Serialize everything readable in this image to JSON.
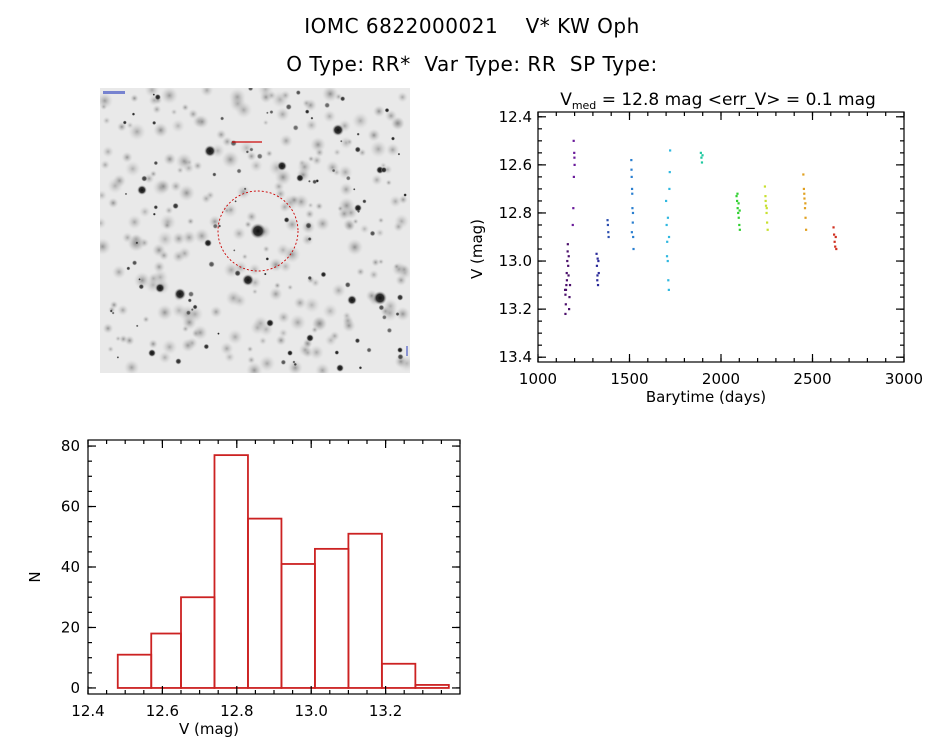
{
  "header": {
    "line1": "IOMC 6822000021    V* KW Oph",
    "line2": "O Type: RR*  Var Type: RR  SP Type:"
  },
  "finder": {
    "circle_color": "#cc0000"
  },
  "chart_data": [
    {
      "type": "scatter",
      "title_prefix": "V",
      "title_sub": "med",
      "title_rest": " = 12.8 mag <err_V> = 0.1 mag",
      "xlabel": "Barytime (days)",
      "ylabel": "V (mag)",
      "xlim": [
        1000,
        3000
      ],
      "ylim": [
        13.42,
        12.38
      ],
      "y_inverted": true,
      "xticks": [
        1000,
        1500,
        2000,
        2500,
        3000
      ],
      "yticks": [
        12.4,
        12.6,
        12.8,
        13.0,
        13.2,
        13.4
      ],
      "grid": false,
      "series": [
        {
          "color": "#4b0f6b",
          "points": [
            [
              1150,
              13.22
            ],
            [
              1152,
              13.18
            ],
            [
              1155,
              13.1
            ],
            [
              1157,
              13.05
            ],
            [
              1160,
              13.0
            ],
            [
              1162,
              12.96
            ],
            [
              1150,
              13.14
            ],
            [
              1153,
              13.12
            ],
            [
              1158,
              13.08
            ],
            [
              1165,
              13.02
            ],
            [
              1168,
              12.98
            ],
            [
              1170,
              13.2
            ],
            [
              1172,
              13.15
            ],
            [
              1148,
              13.12
            ],
            [
              1163,
              12.93
            ],
            [
              1175,
              13.1
            ],
            [
              1167,
              13.06
            ]
          ]
        },
        {
          "color": "#6a1a9a",
          "points": [
            [
              1195,
              12.5
            ],
            [
              1198,
              12.55
            ],
            [
              1200,
              12.6
            ],
            [
              1196,
              12.65
            ],
            [
              1193,
              12.78
            ],
            [
              1190,
              12.85
            ],
            [
              1199,
              12.57
            ]
          ]
        },
        {
          "color": "#2b2a9a",
          "points": [
            [
              1320,
              12.97
            ],
            [
              1322,
              13.02
            ],
            [
              1325,
              13.06
            ],
            [
              1328,
              13.1
            ],
            [
              1330,
              13.0
            ],
            [
              1332,
              13.05
            ],
            [
              1326,
              12.99
            ],
            [
              1324,
              13.08
            ]
          ]
        },
        {
          "color": "#2c4fb0",
          "points": [
            [
              1380,
              12.83
            ],
            [
              1382,
              12.85
            ],
            [
              1384,
              12.88
            ],
            [
              1386,
              12.9
            ]
          ]
        },
        {
          "color": "#2a7fd0",
          "points": [
            [
              1510,
              12.58
            ],
            [
              1512,
              12.65
            ],
            [
              1514,
              12.7
            ],
            [
              1516,
              12.78
            ],
            [
              1518,
              12.84
            ],
            [
              1520,
              12.9
            ],
            [
              1522,
              12.95
            ],
            [
              1511,
              12.62
            ],
            [
              1515,
              12.72
            ],
            [
              1519,
              12.8
            ],
            [
              1513,
              12.88
            ]
          ]
        },
        {
          "color": "#2fb8e0",
          "points": [
            [
              1700,
              12.75
            ],
            [
              1703,
              12.85
            ],
            [
              1706,
              12.92
            ],
            [
              1709,
              13.0
            ],
            [
              1712,
              13.08
            ],
            [
              1715,
              13.12
            ],
            [
              1718,
              12.7
            ],
            [
              1720,
              12.63
            ],
            [
              1722,
              12.54
            ],
            [
              1705,
              12.98
            ],
            [
              1710,
              12.82
            ],
            [
              1716,
              12.9
            ]
          ]
        },
        {
          "color": "#20c8a0",
          "points": [
            [
              1890,
              12.55
            ],
            [
              1893,
              12.57
            ],
            [
              1896,
              12.59
            ],
            [
              1899,
              12.56
            ]
          ]
        },
        {
          "color": "#30d030",
          "points": [
            [
              2085,
              12.73
            ],
            [
              2088,
              12.75
            ],
            [
              2091,
              12.78
            ],
            [
              2094,
              12.8
            ],
            [
              2097,
              12.82
            ],
            [
              2100,
              12.85
            ],
            [
              2103,
              12.87
            ],
            [
              2090,
              12.72
            ],
            [
              2096,
              12.76
            ],
            [
              2102,
              12.79
            ]
          ]
        },
        {
          "color": "#c8e030",
          "points": [
            [
              2240,
              12.69
            ],
            [
              2243,
              12.73
            ],
            [
              2246,
              12.77
            ],
            [
              2249,
              12.8
            ],
            [
              2252,
              12.84
            ],
            [
              2255,
              12.87
            ],
            [
              2244,
              12.75
            ],
            [
              2250,
              12.78
            ]
          ]
        },
        {
          "color": "#e0a020",
          "points": [
            [
              2450,
              12.64
            ],
            [
              2453,
              12.7
            ],
            [
              2456,
              12.74
            ],
            [
              2459,
              12.78
            ],
            [
              2462,
              12.82
            ],
            [
              2465,
              12.87
            ],
            [
              2455,
              12.72
            ],
            [
              2461,
              12.76
            ]
          ]
        },
        {
          "color": "#d03020",
          "points": [
            [
              2615,
              12.86
            ],
            [
              2618,
              12.89
            ],
            [
              2621,
              12.92
            ],
            [
              2624,
              12.94
            ],
            [
              2627,
              12.9
            ],
            [
              2630,
              12.95
            ]
          ]
        }
      ]
    },
    {
      "type": "bar",
      "xlabel": "V (mag)",
      "ylabel": "N",
      "xlim": [
        12.4,
        13.4
      ],
      "ylim": [
        -2,
        82
      ],
      "xticks": [
        "12.4",
        "12.6",
        "12.8",
        "13.0",
        "13.2"
      ],
      "yticks": [
        0,
        20,
        40,
        60,
        80
      ],
      "bar_color": "#cc2222",
      "bins": [
        {
          "x0": 12.48,
          "x1": 12.57,
          "n": 11
        },
        {
          "x0": 12.57,
          "x1": 12.65,
          "n": 18
        },
        {
          "x0": 12.65,
          "x1": 12.74,
          "n": 30
        },
        {
          "x0": 12.74,
          "x1": 12.83,
          "n": 77
        },
        {
          "x0": 12.83,
          "x1": 12.92,
          "n": 56
        },
        {
          "x0": 12.92,
          "x1": 13.01,
          "n": 41
        },
        {
          "x0": 13.01,
          "x1": 13.1,
          "n": 46
        },
        {
          "x0": 13.1,
          "x1": 13.19,
          "n": 51
        },
        {
          "x0": 13.19,
          "x1": 13.28,
          "n": 8
        },
        {
          "x0": 13.28,
          "x1": 13.37,
          "n": 1
        }
      ]
    }
  ]
}
